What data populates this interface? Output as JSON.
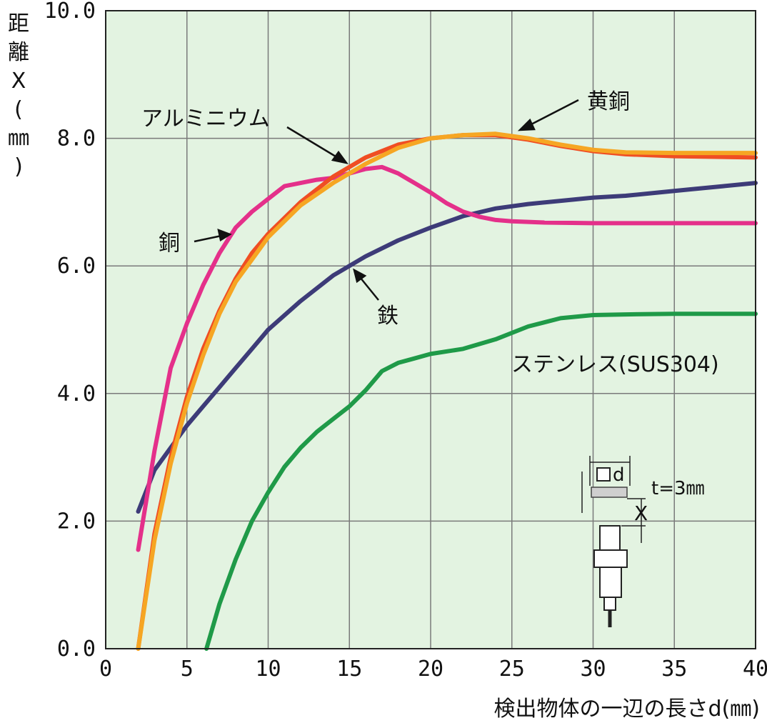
{
  "chart_data": {
    "type": "line",
    "xlabel": "検出物体の一辺の長さd(㎜)",
    "ylabel_chars": [
      "距",
      "離",
      "X",
      "(",
      "㎜",
      ")"
    ],
    "xlim": [
      0,
      40
    ],
    "ylim": [
      0,
      10
    ],
    "x_ticks": [
      "0",
      "5",
      "10",
      "15",
      "20",
      "25",
      "30",
      "35",
      "40"
    ],
    "y_ticks": [
      "0.0",
      "2.0",
      "4.0",
      "6.0",
      "8.0",
      "10.0"
    ],
    "grid": true,
    "background_color": "#e3f3e1",
    "series": [
      {
        "name": "鉄",
        "color": "#3d3b78",
        "x": [
          2,
          3,
          4,
          5,
          6,
          7,
          8,
          9,
          10,
          12,
          14,
          16,
          18,
          20,
          22,
          24,
          26,
          28,
          30,
          32,
          34,
          36,
          38,
          40
        ],
        "y": [
          2.15,
          2.8,
          3.15,
          3.5,
          3.8,
          4.1,
          4.4,
          4.7,
          5.0,
          5.45,
          5.85,
          6.15,
          6.4,
          6.6,
          6.78,
          6.9,
          6.97,
          7.02,
          7.07,
          7.1,
          7.15,
          7.2,
          7.25,
          7.3
        ]
      },
      {
        "name": "銅",
        "color": "#e4308a",
        "x": [
          2,
          3,
          4,
          5,
          6,
          7,
          8,
          9,
          10,
          11,
          12,
          13,
          14,
          15,
          16,
          17,
          18,
          19,
          20,
          21,
          22,
          23,
          24,
          25,
          27,
          30,
          35,
          40
        ],
        "y": [
          1.55,
          3.1,
          4.4,
          5.1,
          5.7,
          6.2,
          6.6,
          6.85,
          7.05,
          7.25,
          7.3,
          7.35,
          7.38,
          7.45,
          7.52,
          7.55,
          7.45,
          7.3,
          7.15,
          6.98,
          6.85,
          6.77,
          6.72,
          6.7,
          6.68,
          6.67,
          6.67,
          6.67
        ]
      },
      {
        "name": "アルミニウム",
        "color": "#f04e23",
        "x": [
          2,
          3,
          4,
          5,
          6,
          7,
          8,
          9,
          10,
          12,
          14,
          16,
          18,
          20,
          22,
          24,
          26,
          28,
          30,
          32,
          35,
          40
        ],
        "y": [
          0,
          1.8,
          3.0,
          3.95,
          4.7,
          5.3,
          5.8,
          6.2,
          6.5,
          7.0,
          7.4,
          7.7,
          7.9,
          8.0,
          8.05,
          8.05,
          7.98,
          7.88,
          7.8,
          7.75,
          7.72,
          7.7
        ]
      },
      {
        "name": "黄銅",
        "color": "#f6a623",
        "x": [
          2,
          3,
          4,
          5,
          6,
          7,
          8,
          9,
          10,
          12,
          14,
          16,
          18,
          20,
          22,
          24,
          26,
          28,
          30,
          32,
          35,
          40
        ],
        "y": [
          0,
          1.7,
          2.9,
          3.85,
          4.6,
          5.25,
          5.75,
          6.1,
          6.45,
          6.95,
          7.3,
          7.6,
          7.85,
          8.0,
          8.05,
          8.07,
          8.0,
          7.9,
          7.82,
          7.78,
          7.77,
          7.77
        ]
      },
      {
        "name": "ステンレス(SUS304)",
        "color": "#1f9a48",
        "x": [
          6.2,
          7,
          8,
          9,
          10,
          11,
          12,
          13,
          14,
          15,
          16,
          17,
          18,
          19,
          20,
          22,
          24,
          26,
          28,
          30,
          32,
          35,
          40
        ],
        "y": [
          0,
          0.7,
          1.4,
          2.0,
          2.45,
          2.85,
          3.15,
          3.4,
          3.6,
          3.8,
          4.05,
          4.35,
          4.48,
          4.55,
          4.62,
          4.7,
          4.85,
          5.05,
          5.18,
          5.23,
          5.24,
          5.25,
          5.25
        ]
      }
    ],
    "annotations": [
      {
        "text": "アルミニウム",
        "series": "アルミニウム"
      },
      {
        "text": "黄銅",
        "series": "黄銅"
      },
      {
        "text": "銅",
        "series": "銅"
      },
      {
        "text": "鉄",
        "series": "鉄"
      },
      {
        "text": "ステンレス(SUS304)",
        "series": "ステンレス(SUS304)"
      }
    ],
    "inset": {
      "d_label": "d",
      "t_label": "t=3㎜",
      "x_label": "X"
    }
  }
}
